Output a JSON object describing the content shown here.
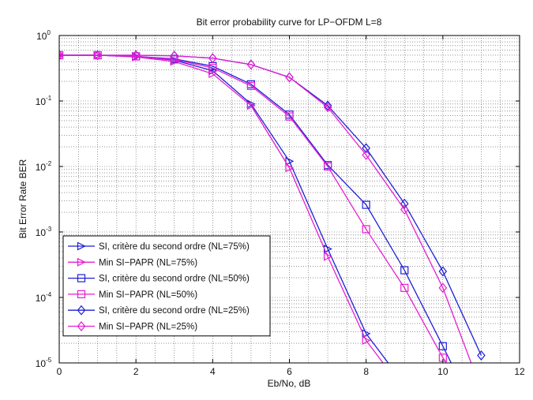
{
  "chart_data": {
    "type": "line",
    "title": "Bit error probability curve for LP−OFDM L=8",
    "xlabel": "Eb/No, dB",
    "ylabel": "Bit Error Rate BER",
    "xlim": [
      0,
      12
    ],
    "ylim": [
      1e-05,
      1
    ],
    "yscale": "log",
    "grid": "dotted, major and minor",
    "legend_position": "bottom-left",
    "x_ticks": [
      "0",
      "2",
      "4",
      "6",
      "8",
      "10",
      "12"
    ],
    "y_ticks": [
      {
        "base": "10",
        "exp": "0"
      },
      {
        "base": "10",
        "exp": "-1"
      },
      {
        "base": "10",
        "exp": "-2"
      },
      {
        "base": "10",
        "exp": "-3"
      },
      {
        "base": "10",
        "exp": "-4"
      },
      {
        "base": "10",
        "exp": "-5"
      }
    ],
    "series": [
      {
        "name": "SI, critère du second ordre (NL=75%)",
        "color": "#1f1fd6",
        "marker": "triangle-right",
        "x": [
          0,
          1,
          2,
          3,
          4,
          5,
          6,
          7,
          8,
          8.7
        ],
        "y": [
          0.5,
          0.5,
          0.48,
          0.42,
          0.29,
          0.09,
          0.012,
          0.00055,
          2.8e-05,
          8e-06
        ]
      },
      {
        "name": "Min SI−PAPR (NL=75%)",
        "color": "#e61ed2",
        "marker": "triangle-right",
        "x": [
          0,
          1,
          2,
          3,
          4,
          5,
          6,
          7,
          8,
          8.5
        ],
        "y": [
          0.5,
          0.5,
          0.47,
          0.4,
          0.26,
          0.085,
          0.0095,
          0.00042,
          2.2e-05,
          9e-06
        ]
      },
      {
        "name": "SI, critère du second ordre (NL=50%)",
        "color": "#1f1fd6",
        "marker": "square",
        "x": [
          0,
          1,
          2,
          3,
          4,
          5,
          6,
          7,
          8,
          9,
          10,
          10.3
        ],
        "y": [
          0.5,
          0.5,
          0.48,
          0.44,
          0.34,
          0.18,
          0.062,
          0.0105,
          0.0026,
          0.00026,
          1.8e-05,
          8e-06
        ]
      },
      {
        "name": "Min SI−PAPR (NL=50%)",
        "color": "#e61ed2",
        "marker": "square",
        "x": [
          0,
          1,
          2,
          3,
          4,
          5,
          6,
          7,
          8,
          9,
          10,
          10.15
        ],
        "y": [
          0.5,
          0.5,
          0.48,
          0.43,
          0.32,
          0.17,
          0.058,
          0.01,
          0.0011,
          0.00014,
          1.2e-05,
          9e-06
        ]
      },
      {
        "name": "SI, critère du second ordre (NL=25%)",
        "color": "#1f1fd6",
        "marker": "diamond",
        "x": [
          0,
          1,
          2,
          3,
          4,
          5,
          6,
          7,
          8,
          9,
          10,
          11
        ],
        "y": [
          0.5,
          0.5,
          0.5,
          0.49,
          0.45,
          0.36,
          0.23,
          0.085,
          0.019,
          0.0027,
          0.00025,
          1.3e-05
        ]
      },
      {
        "name": "Min SI−PAPR (NL=25%)",
        "color": "#e61ed2",
        "marker": "diamond",
        "x": [
          0,
          1,
          2,
          3,
          4,
          5,
          6,
          7,
          8,
          9,
          10,
          10.8
        ],
        "y": [
          0.5,
          0.5,
          0.5,
          0.49,
          0.45,
          0.36,
          0.23,
          0.08,
          0.015,
          0.0022,
          0.00014,
          8e-06
        ]
      }
    ]
  }
}
